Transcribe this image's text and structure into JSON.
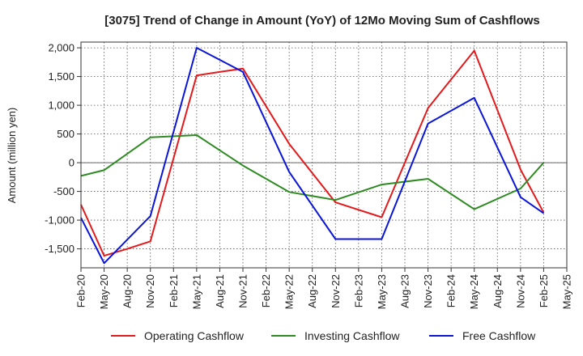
{
  "chart_data": {
    "type": "line",
    "title": "[3075]  Trend of Change in Amount (YoY) of 12Mo Moving Sum of Cashflows",
    "xlabel": "",
    "ylabel": "Amount (million yen)",
    "ylim": [
      -1830,
      2100
    ],
    "yticks": [
      2000,
      1500,
      1000,
      500,
      0,
      -500,
      -1000,
      -1500
    ],
    "ytick_labels": [
      "2,000",
      "1,500",
      "1,000",
      "500",
      "0",
      "-500",
      "-1,000",
      "-1,500"
    ],
    "grid": true,
    "legend_position": "bottom",
    "categories": [
      "Feb-20",
      "May-20",
      "Aug-20",
      "Nov-20",
      "Feb-21",
      "May-21",
      "Aug-21",
      "Nov-21",
      "Feb-22",
      "May-22",
      "Aug-22",
      "Nov-22",
      "Feb-23",
      "May-23",
      "Aug-23",
      "Nov-23",
      "Feb-24",
      "May-24",
      "Aug-24",
      "Nov-24",
      "Feb-25",
      "May-25"
    ],
    "series": [
      {
        "name": "Operating Cashflow",
        "color": "#e31a1c",
        "values": [
          -730,
          -1620,
          -1500,
          -1370,
          null,
          1520,
          1580,
          1640,
          null,
          330,
          null,
          -690,
          null,
          -950,
          null,
          950,
          null,
          1950,
          null,
          -120,
          -870,
          null
        ]
      },
      {
        "name": "Investing Cashflow",
        "color": "#2e8b22",
        "values": [
          -230,
          -130,
          null,
          440,
          null,
          480,
          null,
          -50,
          null,
          -510,
          null,
          -650,
          null,
          -380,
          null,
          -280,
          null,
          -810,
          null,
          -450,
          0,
          null
        ]
      },
      {
        "name": "Free Cashflow",
        "color": "#0b15d8",
        "values": [
          -960,
          -1750,
          null,
          -930,
          null,
          2000,
          null,
          1580,
          null,
          -160,
          null,
          -1330,
          null,
          -1330,
          null,
          680,
          null,
          1130,
          null,
          -600,
          -880,
          null
        ]
      }
    ]
  }
}
